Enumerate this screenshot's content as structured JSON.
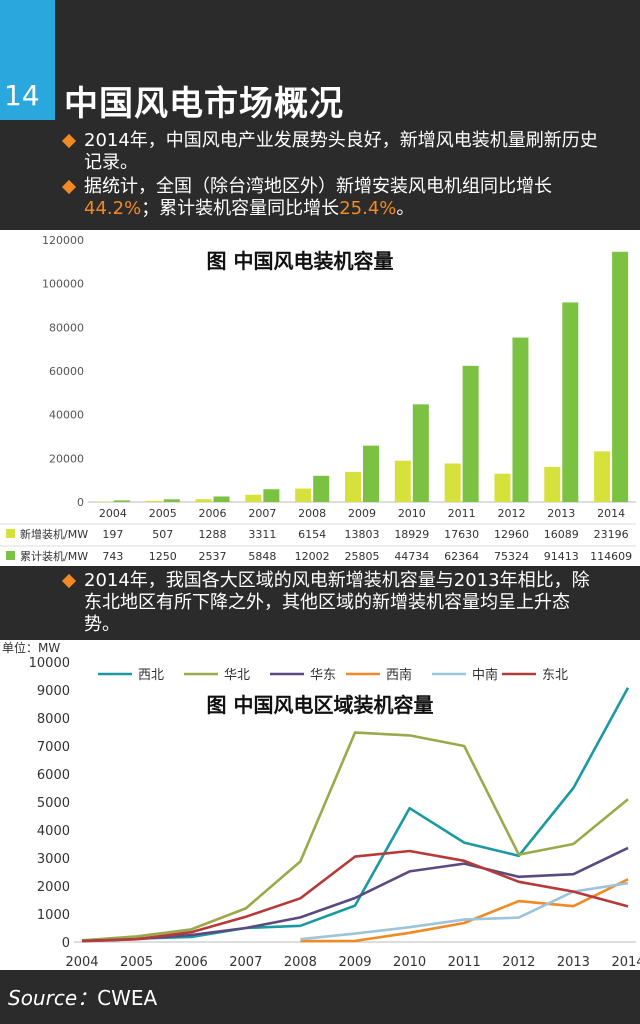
{
  "header": {
    "number": "14",
    "title": "中国风电市场概况"
  },
  "bullets_top": [
    {
      "text": "2014年，中国风电产业发展势头良好，新增风电装机量刷新历史记录。"
    },
    {
      "pre": "据统计，全国（除台湾地区外）新增安装风电机组同比增长",
      "hl1": "44.2%",
      "mid": "；累计装机容量同比增长",
      "hl2": "25.4%",
      "post": "。"
    }
  ],
  "bullets_mid": [
    {
      "text": "2014年，我国各大区域的风电新增装机容量与2013年相比，除东北地区有所下降之外，其他区域的新增装机容量均呈上升态势。"
    }
  ],
  "source": {
    "label": "Source：",
    "value": "CWEA"
  },
  "chart_data": [
    {
      "type": "bar",
      "title": "图 中国风电装机容量",
      "categories": [
        "2004",
        "2005",
        "2006",
        "2007",
        "2008",
        "2009",
        "2010",
        "2011",
        "2012",
        "2013",
        "2014"
      ],
      "series": [
        {
          "name": "新增装机/MW",
          "color": "#d6e13b",
          "values": [
            197,
            507,
            1288,
            3311,
            6154,
            13803,
            18929,
            17630,
            12960,
            16089,
            23196
          ]
        },
        {
          "name": "累计装机/MW",
          "color": "#7cc242",
          "values": [
            743,
            1250,
            2537,
            5848,
            12002,
            25805,
            44734,
            62364,
            75324,
            91413,
            114609
          ]
        }
      ],
      "ylim": [
        0,
        120000
      ],
      "yticks": [
        "0",
        "20000",
        "40000",
        "60000",
        "80000",
        "100000",
        "120000"
      ],
      "legend": "bottom-table"
    },
    {
      "type": "line",
      "title": "图 中国风电区域装机容量",
      "ylabel": "单位：MW",
      "x": [
        "2004",
        "2005",
        "2006",
        "2007",
        "2008",
        "2009",
        "2010",
        "2011",
        "2012",
        "2013",
        "2014"
      ],
      "ylim": [
        0,
        10000
      ],
      "yticks": [
        "0",
        "1000",
        "2000",
        "3000",
        "4000",
        "5000",
        "6000",
        "7000",
        "8000",
        "9000",
        "10000"
      ],
      "legend": "top",
      "series": [
        {
          "name": "西北",
          "color": "#1a9aa0",
          "values": [
            50,
            120,
            180,
            500,
            580,
            1300,
            4780,
            3550,
            3080,
            5500,
            9080
          ]
        },
        {
          "name": "华北",
          "color": "#9aaa4a",
          "values": [
            60,
            200,
            450,
            1200,
            2880,
            7480,
            7380,
            7000,
            3120,
            3500,
            5100
          ]
        },
        {
          "name": "华东",
          "color": "#5a4a80",
          "values": [
            40,
            100,
            250,
            500,
            880,
            1570,
            2520,
            2800,
            2330,
            2420,
            3360
          ]
        },
        {
          "name": "西南",
          "color": "#f08a24",
          "values": [
            null,
            null,
            null,
            null,
            30,
            40,
            330,
            680,
            1460,
            1280,
            2240
          ]
        },
        {
          "name": "中南",
          "color": "#9cc4dc",
          "values": [
            null,
            null,
            null,
            null,
            100,
            300,
            530,
            800,
            870,
            1800,
            2100
          ]
        },
        {
          "name": "东北",
          "color": "#b63a3a",
          "values": [
            30,
            100,
            350,
            900,
            1560,
            3050,
            3250,
            2900,
            2150,
            1800,
            1270
          ]
        }
      ]
    }
  ]
}
